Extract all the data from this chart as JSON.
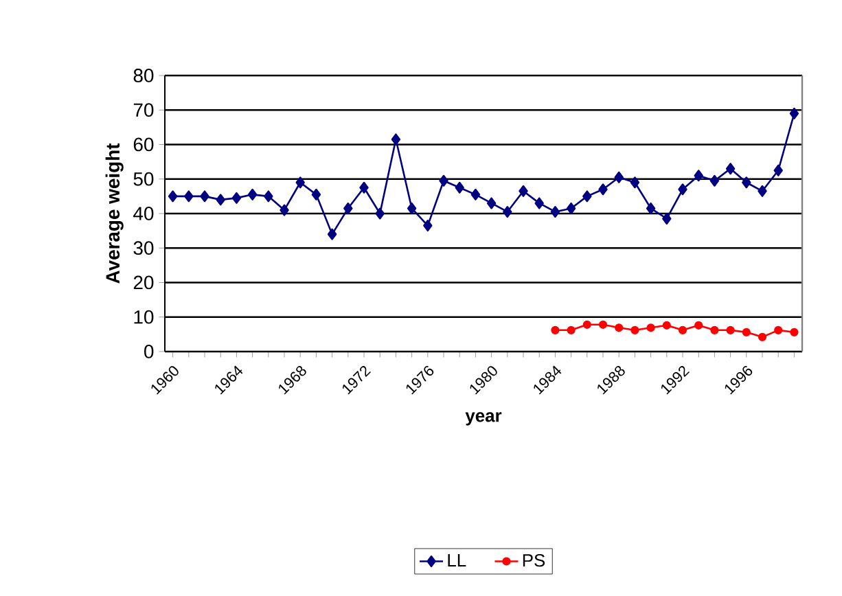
{
  "chart_data": {
    "type": "line",
    "xlabel": "year",
    "ylabel": "Average weight",
    "categories": [
      "1960",
      null,
      null,
      null,
      "1964",
      null,
      null,
      null,
      "1968",
      null,
      null,
      null,
      "1972",
      null,
      null,
      null,
      "1976",
      null,
      null,
      null,
      "1980",
      null,
      null,
      null,
      "1984",
      null,
      null,
      null,
      "1988",
      null,
      null,
      null,
      "1992",
      null,
      null,
      null,
      "1996",
      null,
      null,
      null
    ],
    "series": [
      {
        "name": "LL",
        "color": "#000080",
        "marker": "diamond",
        "values": [
          45,
          45,
          45,
          44,
          44.5,
          45.5,
          45,
          41,
          49,
          45.5,
          34,
          41.5,
          47.5,
          40,
          61.5,
          41.5,
          36.5,
          49.5,
          47.5,
          45.5,
          43,
          40.5,
          46.5,
          43,
          40.5,
          41.5,
          45,
          47,
          50.5,
          49,
          41.5,
          38.5,
          47,
          51,
          49.5,
          53,
          49,
          46.5,
          52.5,
          69
        ]
      },
      {
        "name": "PS",
        "color": "#ff0000",
        "marker": "circle",
        "values": [
          null,
          null,
          null,
          null,
          null,
          null,
          null,
          null,
          null,
          null,
          null,
          null,
          null,
          null,
          null,
          null,
          null,
          null,
          null,
          null,
          null,
          null,
          null,
          null,
          6.2,
          6.2,
          7.8,
          7.8,
          6.9,
          6.2,
          6.9,
          7.6,
          6.2,
          7.6,
          6.2,
          6.2,
          5.6,
          4.2,
          6.2,
          5.6
        ]
      }
    ],
    "ylim": [
      0,
      80
    ],
    "yticks": [
      0,
      10,
      20,
      30,
      40,
      50,
      60,
      70,
      80
    ],
    "grid": "y",
    "legend": "bottom",
    "line_style": "solid"
  }
}
